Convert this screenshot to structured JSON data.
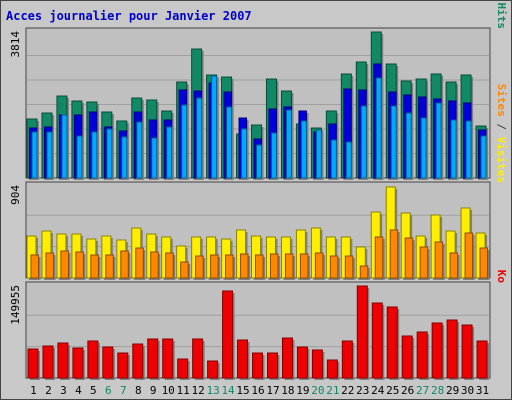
{
  "title": "Acces journalier pour Janvier 2007",
  "panels": {
    "hits": {
      "max_label": "3814",
      "legend": [
        {
          "text": "Pages",
          "color": "#00aaff"
        },
        {
          "text": " / ",
          "color": "#444444"
        },
        {
          "text": "Fichiers",
          "color": "#0000dd"
        },
        {
          "text": " / ",
          "color": "#444444"
        },
        {
          "text": "Hits",
          "color": "#118866"
        }
      ]
    },
    "visits": {
      "max_label": "904",
      "legend": [
        {
          "text": "Sites",
          "color": "#ff8800"
        },
        {
          "text": " / ",
          "color": "#444444"
        },
        {
          "text": "Visites",
          "color": "#ffee00"
        }
      ]
    },
    "kbytes": {
      "max_label": "149955",
      "legend": [
        {
          "text": "Ko",
          "color": "#ee0000"
        }
      ]
    }
  },
  "colors": {
    "hits": "#118866",
    "files": "#0000dd",
    "pages": "#00aaff",
    "visits": "#ffee00",
    "sites": "#ff8800",
    "kbytes": "#ee0000",
    "weekend_day": "#118866",
    "weekday": "#000000"
  },
  "chart_data": [
    {
      "type": "bar",
      "categories": [
        "1",
        "2",
        "3",
        "4",
        "5",
        "6",
        "7",
        "8",
        "9",
        "10",
        "11",
        "12",
        "13",
        "14",
        "15",
        "16",
        "17",
        "18",
        "19",
        "20",
        "21",
        "22",
        "23",
        "24",
        "25",
        "26",
        "27",
        "28",
        "29",
        "30",
        "31"
      ],
      "weekend_days": [
        "6",
        "7",
        "13",
        "14",
        "20",
        "21",
        "27",
        "28"
      ],
      "ylim": [
        0,
        3814
      ],
      "series": [
        {
          "name": "Hits",
          "values": [
            1550,
            1690,
            2130,
            2000,
            1990,
            1720,
            1500,
            2100,
            2030,
            1760,
            2500,
            3380,
            2700,
            2650,
            1140,
            1380,
            2590,
            2280,
            1400,
            1300,
            1750,
            2720,
            3030,
            3814,
            2970,
            2540,
            2580,
            2720,
            2520,
            2700,
            1350
          ]
        },
        {
          "name": "Fichiers",
          "values": [
            1300,
            1330,
            1650,
            1640,
            1730,
            1330,
            1220,
            1730,
            1520,
            1510,
            2310,
            2270,
            2480,
            2240,
            1580,
            1020,
            1800,
            1850,
            1760,
            1200,
            1420,
            2330,
            2300,
            2990,
            2240,
            2180,
            2110,
            2070,
            2010,
            1950,
            1250
          ]
        },
        {
          "name": "Pages",
          "values": [
            1200,
            1190,
            1650,
            1090,
            1210,
            1280,
            1080,
            1470,
            1040,
            1340,
            1900,
            2100,
            2670,
            1860,
            1290,
            870,
            1170,
            1780,
            1480,
            1250,
            1000,
            950,
            1870,
            2600,
            1890,
            1700,
            1570,
            1970,
            1520,
            1500,
            1100
          ]
        }
      ]
    },
    {
      "type": "bar",
      "categories": [
        "1",
        "2",
        "3",
        "4",
        "5",
        "6",
        "7",
        "8",
        "9",
        "10",
        "11",
        "12",
        "13",
        "14",
        "15",
        "16",
        "17",
        "18",
        "19",
        "20",
        "21",
        "22",
        "23",
        "24",
        "25",
        "26",
        "27",
        "28",
        "29",
        "30",
        "31"
      ],
      "ylim": [
        0,
        904
      ],
      "series": [
        {
          "name": "Visites",
          "values": [
            410,
            460,
            430,
            430,
            380,
            410,
            370,
            490,
            430,
            400,
            310,
            400,
            400,
            380,
            470,
            410,
            400,
            400,
            470,
            490,
            400,
            400,
            300,
            650,
            890,
            640,
            410,
            620,
            460,
            690,
            440
          ]
        },
        {
          "name": "Sites",
          "values": [
            230,
            250,
            270,
            260,
            230,
            230,
            270,
            290,
            260,
            250,
            160,
            220,
            230,
            230,
            240,
            230,
            240,
            240,
            240,
            250,
            220,
            220,
            120,
            400,
            470,
            390,
            300,
            350,
            250,
            440,
            290
          ]
        }
      ]
    },
    {
      "type": "bar",
      "categories": [
        "1",
        "2",
        "3",
        "4",
        "5",
        "6",
        "7",
        "8",
        "9",
        "10",
        "11",
        "12",
        "13",
        "14",
        "15",
        "16",
        "17",
        "18",
        "19",
        "20",
        "21",
        "22",
        "23",
        "24",
        "25",
        "26",
        "27",
        "28",
        "29",
        "30",
        "31"
      ],
      "ylim": [
        0,
        149955
      ],
      "series": [
        {
          "name": "Ko",
          "values": [
            48000,
            52000,
            57000,
            49000,
            60000,
            51000,
            41000,
            56000,
            63000,
            63000,
            31000,
            63000,
            28000,
            142000,
            62000,
            40000,
            41000,
            66000,
            51000,
            45000,
            30000,
            60000,
            149955,
            123000,
            116000,
            69000,
            75000,
            90000,
            95000,
            86000,
            61000
          ]
        }
      ]
    }
  ]
}
